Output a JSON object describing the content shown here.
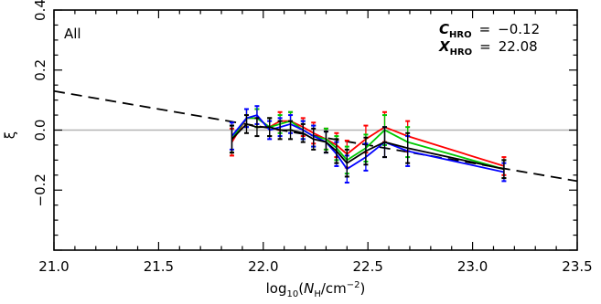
{
  "chart_data": {
    "type": "line",
    "panel_label": "All",
    "xlabel": {
      "prefix": "log",
      "sub": "10",
      "paren_open": "(",
      "var": "N",
      "var_sub": "H",
      "unit": "/cm",
      "unit_sup": "−2",
      "paren_close": ")"
    },
    "ylabel": "ξ",
    "xlim": [
      21.0,
      23.5
    ],
    "ylim": [
      -0.4,
      0.4
    ],
    "x_ticks": [
      21.0,
      21.5,
      22.0,
      22.5,
      23.0,
      23.5
    ],
    "x_tick_labels": [
      "21.0",
      "21.5",
      "22.0",
      "22.5",
      "23.0",
      "23.5"
    ],
    "y_ticks": [
      -0.2,
      0.0,
      0.2,
      0.4
    ],
    "y_tick_labels": [
      "−0.2",
      "0.0",
      "0.2",
      "0.4"
    ],
    "reference_line": {
      "y": 0.0,
      "color": "#b4b4b4"
    },
    "fit_line": {
      "x": [
        21.0,
        23.5
      ],
      "y": [
        0.13,
        -0.17
      ],
      "style": "dashed",
      "color": "#000000"
    },
    "annotations": [
      {
        "symbol": "C",
        "sub": "HRO",
        "eq": "=",
        "value": "−0.12"
      },
      {
        "symbol": "X",
        "sub": "HRO",
        "eq": "=",
        "value": "22.08"
      }
    ],
    "x": [
      21.85,
      21.92,
      21.97,
      22.03,
      22.08,
      22.13,
      22.19,
      22.24,
      22.3,
      22.35,
      22.4,
      22.49,
      22.58,
      22.69,
      23.15
    ],
    "series": [
      {
        "color": "#ff0000",
        "values": [
          -0.04,
          0.04,
          0.04,
          0.01,
          0.03,
          0.03,
          0.01,
          -0.01,
          -0.03,
          -0.05,
          -0.08,
          -0.03,
          0.01,
          -0.02,
          -0.12
        ],
        "errors": [
          0.045,
          0.03,
          0.03,
          0.03,
          0.03,
          0.03,
          0.03,
          0.035,
          0.035,
          0.04,
          0.045,
          0.045,
          0.05,
          0.05,
          0.03
        ]
      },
      {
        "color": "#00c800",
        "values": [
          -0.03,
          0.04,
          0.04,
          0.01,
          0.02,
          0.03,
          0.0,
          -0.02,
          -0.03,
          -0.06,
          -0.1,
          -0.06,
          0.0,
          -0.04,
          -0.13
        ],
        "errors": [
          0.045,
          0.03,
          0.03,
          0.03,
          0.03,
          0.03,
          0.03,
          0.035,
          0.035,
          0.04,
          0.045,
          0.045,
          0.05,
          0.05,
          0.03
        ]
      },
      {
        "color": "#0000ff",
        "values": [
          -0.02,
          0.04,
          0.05,
          0.0,
          0.01,
          0.02,
          0.0,
          -0.02,
          -0.04,
          -0.08,
          -0.13,
          -0.09,
          -0.04,
          -0.07,
          -0.14
        ],
        "errors": [
          0.045,
          0.03,
          0.03,
          0.03,
          0.03,
          0.03,
          0.03,
          0.035,
          0.035,
          0.04,
          0.045,
          0.045,
          0.05,
          0.05,
          0.03
        ]
      },
      {
        "color": "#000000",
        "values": [
          -0.03,
          0.02,
          0.01,
          0.01,
          0.0,
          0.0,
          -0.01,
          -0.03,
          -0.04,
          -0.07,
          -0.11,
          -0.07,
          -0.04,
          -0.06,
          -0.13
        ],
        "errors": [
          0.045,
          0.03,
          0.03,
          0.03,
          0.03,
          0.03,
          0.03,
          0.035,
          0.035,
          0.04,
          0.045,
          0.045,
          0.05,
          0.05,
          0.03
        ]
      }
    ]
  }
}
